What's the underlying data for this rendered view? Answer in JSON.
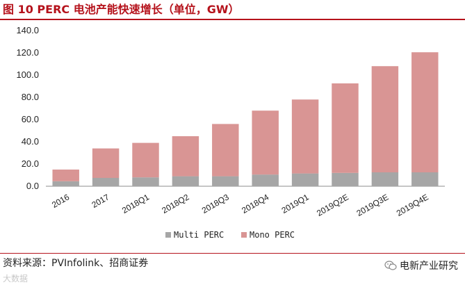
{
  "header": {
    "title": "图 10 PERC 电池产能快速增长（单位，GW）"
  },
  "footer": {
    "source": "资料来源：PVInfolink、招商证券",
    "account": "电新产业研究",
    "watermark": "大数据"
  },
  "colors": {
    "title": "#b5121b",
    "multi": "#a6a6a6",
    "mono": "#d99594"
  },
  "icons": {
    "account": "wechat-icon"
  },
  "chart_data": {
    "type": "bar",
    "stacked": true,
    "categories": [
      "2016",
      "2017",
      "2018Q1",
      "2018Q2",
      "2018Q3",
      "2018Q4",
      "2019Q1",
      "2019Q2E",
      "2019Q3E",
      "2019Q4E"
    ],
    "series": [
      {
        "name": "Multi PERC",
        "color": "#a6a6a6",
        "values": [
          4.5,
          7.5,
          8.0,
          9.0,
          9.0,
          10.5,
          11.5,
          12.0,
          12.5,
          12.5
        ]
      },
      {
        "name": "Mono PERC",
        "color": "#d99594",
        "values": [
          10.5,
          26.5,
          31.0,
          36.0,
          47.0,
          57.5,
          66.5,
          80.5,
          95.5,
          108.0
        ]
      }
    ],
    "ylim": [
      0,
      140
    ],
    "yticks": [
      0,
      20,
      40,
      60,
      80,
      100,
      120,
      140
    ],
    "ytick_labels": [
      "0.0",
      "20.0",
      "40.0",
      "60.0",
      "80.0",
      "100.0",
      "120.0",
      "140.0"
    ],
    "legend": "bottom",
    "grid": false
  }
}
